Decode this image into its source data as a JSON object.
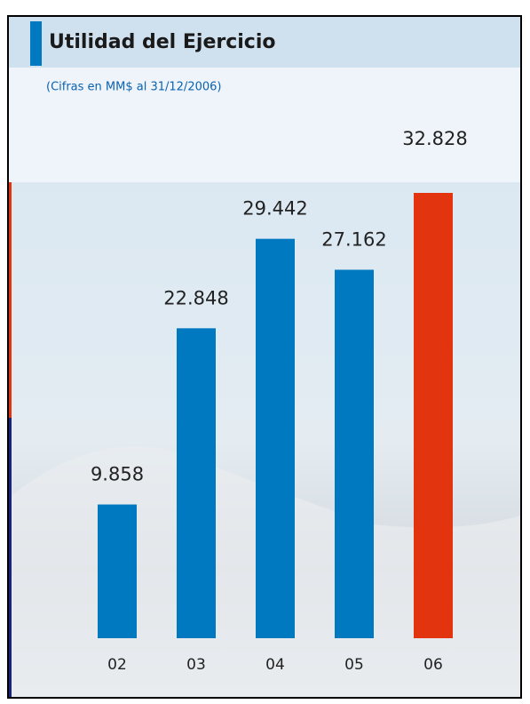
{
  "chart_data": {
    "type": "bar",
    "title": "Utilidad del Ejercicio",
    "subtitle": "(Cifras en MM$ al 31/12/2006)",
    "categories": [
      "02",
      "03",
      "04",
      "05",
      "06"
    ],
    "values": [
      9858,
      22848,
      29442,
      27162,
      32828
    ],
    "value_labels": [
      "9.858",
      "22.848",
      "29.442",
      "27.162",
      "32.828"
    ],
    "colors": [
      "#0079c1",
      "#0079c1",
      "#0079c1",
      "#0079c1",
      "#e2340f"
    ]
  }
}
